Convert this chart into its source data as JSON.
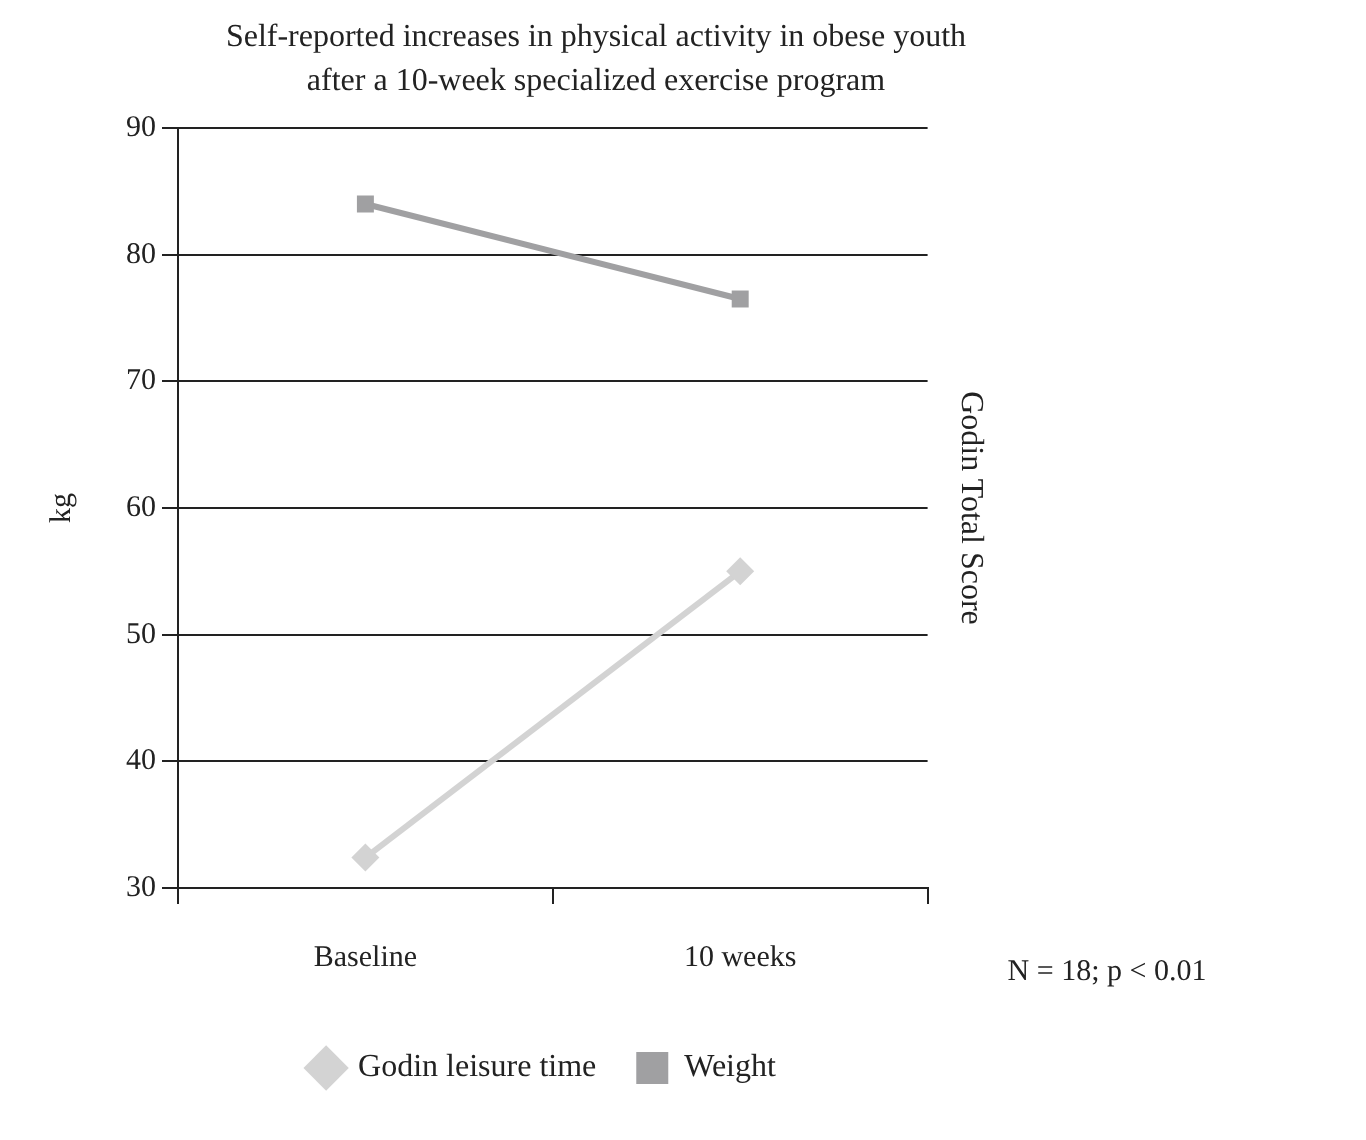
{
  "chart_data": {
    "type": "line",
    "title": "Self-reported increases in physical activity in obese youth after a 10-week specialized exercise program",
    "ylabel": "kg",
    "y2label": "Godin Total Score",
    "categories": [
      "Baseline",
      "10 weeks"
    ],
    "series": [
      {
        "name": "Godin leisure time",
        "color": "#d3d3d3",
        "values": [
          32.4,
          55
        ],
        "marker": "diamond"
      },
      {
        "name": "Weight",
        "color": "#a0a0a2",
        "values": [
          84,
          76.5
        ],
        "marker": "square"
      }
    ],
    "ylim": [
      30,
      90
    ],
    "yticks": [
      30,
      40,
      50,
      60,
      70,
      80,
      90
    ],
    "grid": "y",
    "legend": "bottom",
    "annotations": [
      "N = 18; p < 0.01"
    ]
  }
}
